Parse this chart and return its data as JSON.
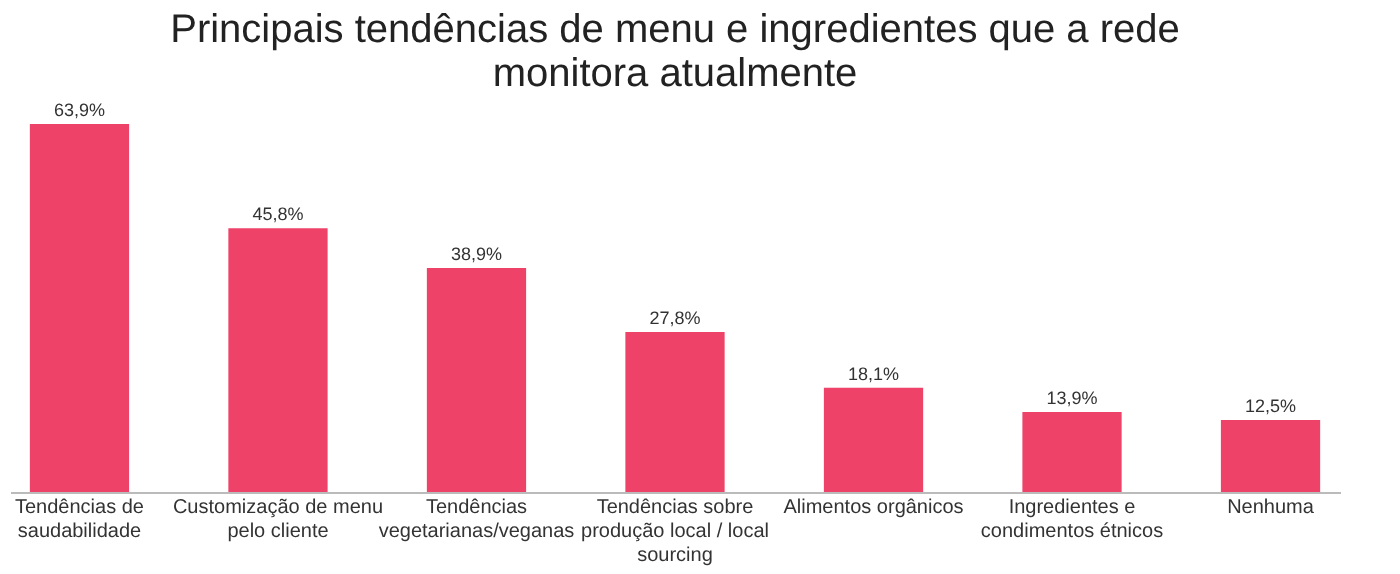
{
  "chart_data": {
    "type": "bar",
    "title": "Principais tendências de menu e ingredientes que a rede monitora atualmente",
    "categories": [
      "Tendências de saudabilidade",
      "Customização de menu pelo cliente",
      "Tendências vegetarianas/veganas",
      "Tendências sobre produção local / local sourcing",
      "Alimentos orgânicos",
      "Ingredientes e condimentos étnicos",
      "Nenhuma"
    ],
    "values": [
      63.9,
      45.8,
      38.9,
      27.8,
      18.1,
      13.9,
      12.5
    ],
    "value_labels": [
      "63,9%",
      "45,8%",
      "38,9%",
      "27,8%",
      "18,1%",
      "13,9%",
      "12,5%"
    ],
    "color": "#ee4269"
  }
}
